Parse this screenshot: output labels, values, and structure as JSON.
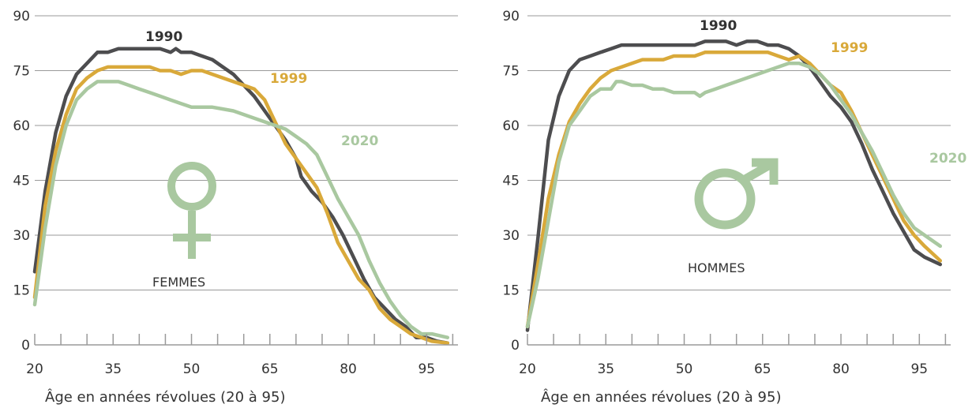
{
  "chart_data": [
    {
      "type": "line",
      "panel_label": "FEMMES",
      "symbol": "female-symbol",
      "xlabel": "Âge en années révolues (20 à 95)",
      "xlim": [
        20,
        101
      ],
      "ylim": [
        0,
        90
      ],
      "xticks": [
        20,
        35,
        50,
        65,
        80,
        95
      ],
      "yticks": [
        0,
        15,
        30,
        45,
        60,
        75,
        90
      ],
      "grid": "horizontal",
      "series": [
        {
          "name": "1990",
          "color": "#4d4d4f",
          "points": [
            [
              20,
              20
            ],
            [
              22,
              42
            ],
            [
              24,
              58
            ],
            [
              26,
              68
            ],
            [
              28,
              74
            ],
            [
              30,
              77
            ],
            [
              32,
              80
            ],
            [
              34,
              80
            ],
            [
              36,
              81
            ],
            [
              38,
              81
            ],
            [
              40,
              81
            ],
            [
              42,
              81
            ],
            [
              44,
              81
            ],
            [
              46,
              80
            ],
            [
              47,
              81
            ],
            [
              48,
              80
            ],
            [
              50,
              80
            ],
            [
              52,
              79
            ],
            [
              54,
              78
            ],
            [
              56,
              76
            ],
            [
              58,
              74
            ],
            [
              60,
              71
            ],
            [
              62,
              68
            ],
            [
              64,
              64
            ],
            [
              66,
              60
            ],
            [
              68,
              56
            ],
            [
              70,
              51
            ],
            [
              71,
              46
            ],
            [
              72,
              44
            ],
            [
              73,
              42
            ],
            [
              75,
              39
            ],
            [
              77,
              35
            ],
            [
              79,
              30
            ],
            [
              81,
              24
            ],
            [
              83,
              18
            ],
            [
              85,
              13
            ],
            [
              87,
              10
            ],
            [
              89,
              7
            ],
            [
              91,
              5
            ],
            [
              93,
              2
            ],
            [
              95,
              2
            ],
            [
              97,
              1
            ],
            [
              99,
              0.5
            ]
          ]
        },
        {
          "name": "1999",
          "color": "#d9a93a",
          "points": [
            [
              20,
              13
            ],
            [
              22,
              38
            ],
            [
              24,
              53
            ],
            [
              26,
              63
            ],
            [
              28,
              70
            ],
            [
              30,
              73
            ],
            [
              32,
              75
            ],
            [
              34,
              76
            ],
            [
              36,
              76
            ],
            [
              38,
              76
            ],
            [
              40,
              76
            ],
            [
              42,
              76
            ],
            [
              44,
              75
            ],
            [
              46,
              75
            ],
            [
              48,
              74
            ],
            [
              50,
              75
            ],
            [
              52,
              75
            ],
            [
              54,
              74
            ],
            [
              56,
              73
            ],
            [
              58,
              72
            ],
            [
              60,
              71
            ],
            [
              62,
              70
            ],
            [
              64,
              67
            ],
            [
              66,
              61
            ],
            [
              68,
              55
            ],
            [
              70,
              51
            ],
            [
              72,
              47
            ],
            [
              74,
              43
            ],
            [
              76,
              36
            ],
            [
              78,
              28
            ],
            [
              80,
              23
            ],
            [
              82,
              18
            ],
            [
              84,
              15
            ],
            [
              86,
              10
            ],
            [
              88,
              7
            ],
            [
              90,
              5
            ],
            [
              92,
              3
            ],
            [
              94,
              2
            ],
            [
              96,
              1
            ],
            [
              99,
              0.5
            ]
          ]
        },
        {
          "name": "2020",
          "color": "#a9c8a0",
          "points": [
            [
              20,
              11
            ],
            [
              22,
              32
            ],
            [
              24,
              49
            ],
            [
              26,
              60
            ],
            [
              28,
              67
            ],
            [
              30,
              70
            ],
            [
              32,
              72
            ],
            [
              34,
              72
            ],
            [
              36,
              72
            ],
            [
              38,
              71
            ],
            [
              40,
              70
            ],
            [
              42,
              69
            ],
            [
              44,
              68
            ],
            [
              46,
              67
            ],
            [
              48,
              66
            ],
            [
              50,
              65
            ],
            [
              52,
              65
            ],
            [
              54,
              65
            ],
            [
              56,
              64.5
            ],
            [
              58,
              64
            ],
            [
              60,
              63
            ],
            [
              62,
              62
            ],
            [
              64,
              61
            ],
            [
              66,
              60
            ],
            [
              68,
              59
            ],
            [
              70,
              57
            ],
            [
              72,
              55
            ],
            [
              74,
              52
            ],
            [
              76,
              46
            ],
            [
              78,
              40
            ],
            [
              80,
              35
            ],
            [
              82,
              30
            ],
            [
              84,
              23
            ],
            [
              86,
              17
            ],
            [
              88,
              12
            ],
            [
              90,
              8
            ],
            [
              92,
              5
            ],
            [
              94,
              3
            ],
            [
              96,
              3
            ],
            [
              99,
              2
            ]
          ]
        }
      ]
    },
    {
      "type": "line",
      "panel_label": "HOMMES",
      "symbol": "male-symbol",
      "xlabel": "Âge en années révolues (20 à 95)",
      "xlim": [
        20,
        101
      ],
      "ylim": [
        0,
        90
      ],
      "xticks": [
        20,
        35,
        50,
        65,
        80,
        95
      ],
      "yticks": [
        0,
        15,
        30,
        45,
        60,
        75,
        90
      ],
      "grid": "horizontal",
      "series": [
        {
          "name": "1990",
          "color": "#4d4d4f",
          "points": [
            [
              20,
              4
            ],
            [
              22,
              29
            ],
            [
              24,
              56
            ],
            [
              26,
              68
            ],
            [
              28,
              75
            ],
            [
              30,
              78
            ],
            [
              32,
              79
            ],
            [
              34,
              80
            ],
            [
              36,
              81
            ],
            [
              38,
              82
            ],
            [
              40,
              82
            ],
            [
              42,
              82
            ],
            [
              44,
              82
            ],
            [
              46,
              82
            ],
            [
              48,
              82
            ],
            [
              50,
              82
            ],
            [
              52,
              82
            ],
            [
              54,
              83
            ],
            [
              56,
              83
            ],
            [
              58,
              83
            ],
            [
              60,
              82
            ],
            [
              62,
              83
            ],
            [
              64,
              83
            ],
            [
              66,
              82
            ],
            [
              68,
              82
            ],
            [
              70,
              81
            ],
            [
              72,
              79
            ],
            [
              74,
              76
            ],
            [
              76,
              72
            ],
            [
              78,
              68
            ],
            [
              80,
              65
            ],
            [
              82,
              61
            ],
            [
              84,
              55
            ],
            [
              86,
              48
            ],
            [
              88,
              42
            ],
            [
              90,
              36
            ],
            [
              92,
              31
            ],
            [
              94,
              26
            ],
            [
              96,
              24
            ],
            [
              99,
              22
            ]
          ]
        },
        {
          "name": "1999",
          "color": "#d9a93a",
          "points": [
            [
              20,
              5
            ],
            [
              22,
              22
            ],
            [
              24,
              40
            ],
            [
              26,
              52
            ],
            [
              28,
              61
            ],
            [
              30,
              66
            ],
            [
              32,
              70
            ],
            [
              34,
              73
            ],
            [
              36,
              75
            ],
            [
              38,
              76
            ],
            [
              40,
              77
            ],
            [
              42,
              78
            ],
            [
              44,
              78
            ],
            [
              46,
              78
            ],
            [
              48,
              79
            ],
            [
              50,
              79
            ],
            [
              52,
              79
            ],
            [
              54,
              80
            ],
            [
              56,
              80
            ],
            [
              58,
              80
            ],
            [
              60,
              80
            ],
            [
              62,
              80
            ],
            [
              64,
              80
            ],
            [
              66,
              80
            ],
            [
              68,
              79
            ],
            [
              70,
              78
            ],
            [
              72,
              79
            ],
            [
              74,
              77
            ],
            [
              76,
              74
            ],
            [
              78,
              71
            ],
            [
              80,
              69
            ],
            [
              82,
              64
            ],
            [
              84,
              58
            ],
            [
              86,
              52
            ],
            [
              88,
              46
            ],
            [
              90,
              40
            ],
            [
              92,
              34
            ],
            [
              94,
              30
            ],
            [
              96,
              27
            ],
            [
              99,
              23
            ]
          ]
        },
        {
          "name": "2020",
          "color": "#a9c8a0",
          "points": [
            [
              20,
              5
            ],
            [
              22,
              18
            ],
            [
              24,
              34
            ],
            [
              26,
              50
            ],
            [
              28,
              60
            ],
            [
              30,
              64
            ],
            [
              32,
              68
            ],
            [
              34,
              70
            ],
            [
              36,
              70
            ],
            [
              37,
              72
            ],
            [
              38,
              72
            ],
            [
              40,
              71
            ],
            [
              42,
              71
            ],
            [
              44,
              70
            ],
            [
              46,
              70
            ],
            [
              48,
              69
            ],
            [
              50,
              69
            ],
            [
              52,
              69
            ],
            [
              53,
              68
            ],
            [
              54,
              69
            ],
            [
              56,
              70
            ],
            [
              58,
              71
            ],
            [
              60,
              72
            ],
            [
              62,
              73
            ],
            [
              64,
              74
            ],
            [
              66,
              75
            ],
            [
              68,
              76
            ],
            [
              70,
              77
            ],
            [
              72,
              77
            ],
            [
              74,
              76
            ],
            [
              76,
              74
            ],
            [
              78,
              71
            ],
            [
              80,
              67
            ],
            [
              82,
              63
            ],
            [
              84,
              58
            ],
            [
              86,
              53
            ],
            [
              88,
              47
            ],
            [
              90,
              41
            ],
            [
              92,
              36
            ],
            [
              94,
              32
            ],
            [
              96,
              30
            ],
            [
              99,
              27
            ]
          ]
        }
      ]
    }
  ]
}
